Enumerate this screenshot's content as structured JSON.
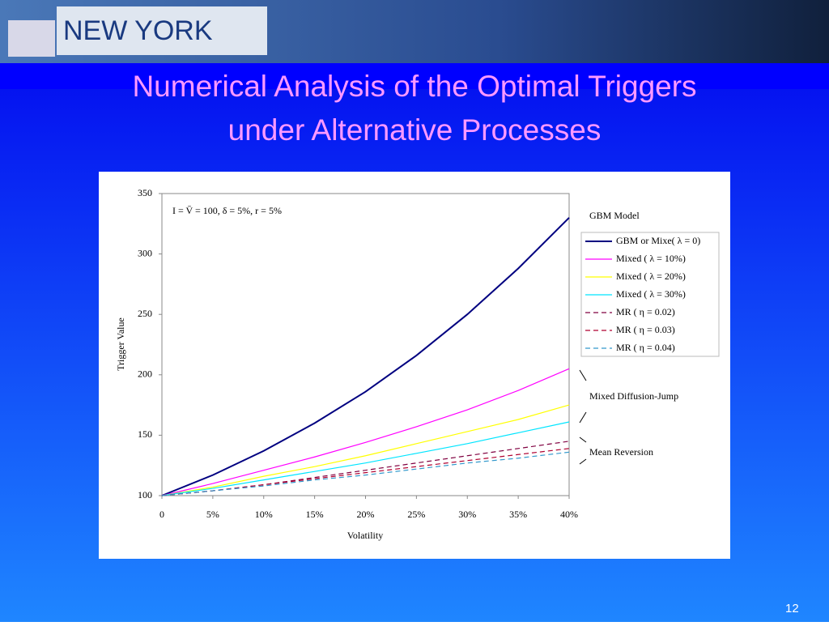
{
  "banner": {
    "text": "NEW YORK"
  },
  "slide": {
    "title": "Numerical Analysis of the Optimal Triggers under Alternative Processes",
    "page_number": "12"
  },
  "chart_data": {
    "type": "line",
    "y_label": "Trigger Value",
    "x_label": "Volatility",
    "annotation": "I = V̄ = 100,  δ = 5%,  r = 5%",
    "group_labels": [
      "GBM Model",
      "Mixed Diffusion-Jump",
      "Mean Reversion"
    ],
    "x": [
      0,
      5,
      10,
      15,
      20,
      25,
      30,
      35,
      40
    ],
    "xlim": [
      0,
      40
    ],
    "xticks": [
      0,
      {
        "value": 5,
        "label": "5%"
      },
      {
        "value": 10,
        "label": "10%"
      },
      {
        "value": 15,
        "label": "15%"
      },
      {
        "value": 20,
        "label": "20%"
      },
      {
        "value": 25,
        "label": "25%"
      },
      {
        "value": 30,
        "label": "30%"
      },
      {
        "value": 35,
        "label": "35%"
      },
      {
        "value": 40,
        "label": "40%"
      }
    ],
    "ylim": [
      100,
      350
    ],
    "yticks": [
      100,
      150,
      200,
      250,
      300,
      350
    ],
    "grid": false,
    "series": [
      {
        "name": "GBM or Mixe( λ = 0)",
        "color": "#000080",
        "dashed": false,
        "values": [
          100,
          117,
          137,
          160,
          186,
          216,
          250,
          288,
          330
        ]
      },
      {
        "name": "Mixed ( λ = 10%)",
        "color": "#ff00ff",
        "dashed": false,
        "values": [
          100,
          110,
          121,
          132,
          144,
          157,
          171,
          187,
          205
        ]
      },
      {
        "name": "Mixed ( λ = 20%)",
        "color": "#ffff00",
        "dashed": false,
        "values": [
          100,
          107,
          116,
          124,
          133,
          143,
          153,
          163,
          175
        ]
      },
      {
        "name": "Mixed ( λ = 30%)",
        "color": "#00e5ff",
        "dashed": false,
        "values": [
          100,
          106,
          113,
          120,
          127,
          135,
          143,
          152,
          161
        ]
      },
      {
        "name": "MR ( η  = 0.02)",
        "color": "#800040",
        "dashed": true,
        "values": [
          100,
          104,
          109,
          115,
          121,
          127,
          133,
          139,
          145
        ]
      },
      {
        "name": "MR ( η  = 0.03)",
        "color": "#b00030",
        "dashed": true,
        "values": [
          100,
          104,
          109,
          114,
          119,
          124,
          129,
          134,
          139
        ]
      },
      {
        "name": "MR ( η  = 0.04)",
        "color": "#3399cc",
        "dashed": true,
        "values": [
          100,
          104,
          108,
          113,
          117,
          122,
          127,
          131,
          136
        ]
      }
    ]
  }
}
